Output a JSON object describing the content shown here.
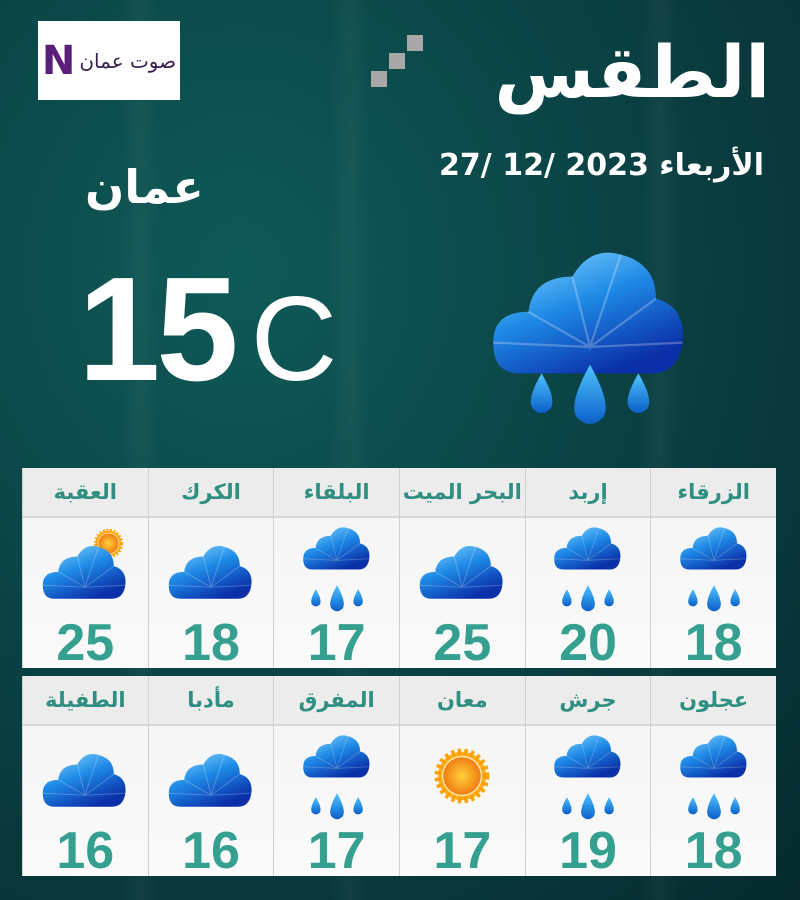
{
  "header": {
    "logo_text": "صوت عمان",
    "title": "الطقس",
    "date": "الأربعاء 2023 /12 /27"
  },
  "current": {
    "city": "عمان",
    "temperature": "15",
    "unit": "C",
    "condition": "rain-cloud-icon"
  },
  "colors": {
    "background": "#0b4446",
    "city_text": "#2f8f80",
    "temp_text": "#35a08f",
    "cloud": "#1e7fe0"
  },
  "rows": [
    [
      {
        "name": "الزرقاء",
        "temp": "18",
        "icon": "rain"
      },
      {
        "name": "إربد",
        "temp": "20",
        "icon": "rain"
      },
      {
        "name": "البحر الميت",
        "temp": "25",
        "icon": "cloud"
      },
      {
        "name": "البلقاء",
        "temp": "17",
        "icon": "rain"
      },
      {
        "name": "الكرك",
        "temp": "18",
        "icon": "cloud"
      },
      {
        "name": "العقبة",
        "temp": "25",
        "icon": "partly"
      }
    ],
    [
      {
        "name": "عجلون",
        "temp": "18",
        "icon": "rain"
      },
      {
        "name": "جرش",
        "temp": "19",
        "icon": "rain"
      },
      {
        "name": "معان",
        "temp": "17",
        "icon": "sun"
      },
      {
        "name": "المفرق",
        "temp": "17",
        "icon": "rain"
      },
      {
        "name": "مأدبا",
        "temp": "16",
        "icon": "cloud"
      },
      {
        "name": "الطفيلة",
        "temp": "16",
        "icon": "cloud"
      }
    ]
  ]
}
